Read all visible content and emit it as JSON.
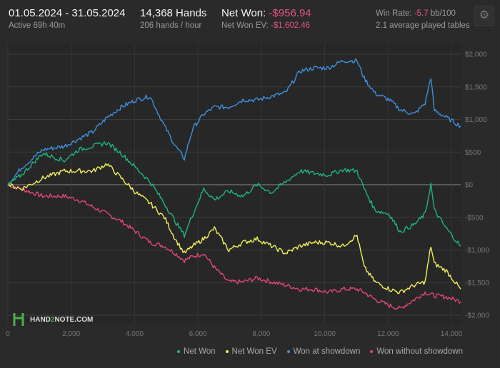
{
  "header": {
    "date_range": "01.05.2024 - 31.05.2024",
    "active": "Active 69h 40m",
    "hands": "14,368 Hands",
    "hands_per_hour": "206 hands / hour",
    "net_won_label": "Net Won:",
    "net_won_value": "-$956.94",
    "net_won_ev_label": "Net Won  EV:",
    "net_won_ev_value": "-$1,602.46",
    "win_rate_label": "Win Rate:",
    "win_rate_value": "-5.7",
    "win_rate_unit": "bb/100",
    "tables": "2.1 average played tables"
  },
  "logo": {
    "text_a": "HAND",
    "text_b": "2",
    "text_c": "NOTE.COM"
  },
  "chart_data": {
    "type": "line",
    "xlim": [
      0,
      14368
    ],
    "ylim": [
      -2000,
      2000
    ],
    "grid": true,
    "legend_placement": "bottom-right",
    "x_ticks": [
      "0",
      "2,000",
      "4,000",
      "6,000",
      "8,000",
      "10,000",
      "12,000",
      "14,000"
    ],
    "x_tick_values": [
      0,
      2000,
      4000,
      6000,
      8000,
      10000,
      12000,
      14000
    ],
    "y_ticks": [
      "$2,000",
      "$1,500",
      "$1,000",
      "$500",
      "$0",
      "-$500",
      "-$1,000",
      "-$1,500",
      "-$2,000"
    ],
    "y_tick_values": [
      2000,
      1500,
      1000,
      500,
      0,
      -500,
      -1000,
      -1500,
      -2000
    ],
    "x": [
      0,
      430,
      1100,
      1780,
      2230,
      2680,
      3130,
      3580,
      4040,
      4490,
      4940,
      5280,
      5570,
      5840,
      6180,
      6520,
      6970,
      7420,
      7870,
      8320,
      8770,
      9220,
      9670,
      10120,
      10570,
      11020,
      11250,
      11590,
      12040,
      12380,
      12830,
      13170,
      13350,
      13460,
      13840,
      14290
    ],
    "series": [
      {
        "name": "Net Won",
        "color": "#1fb57f",
        "values": [
          0,
          150,
          480,
          370,
          535,
          590,
          645,
          480,
          260,
          45,
          -285,
          -560,
          -775,
          -450,
          -65,
          -230,
          -100,
          -175,
          0,
          -120,
          45,
          210,
          175,
          150,
          230,
          210,
          -65,
          -390,
          -450,
          -720,
          -610,
          -450,
          10,
          -390,
          -670,
          -940
        ]
      },
      {
        "name": "Net Won  EV",
        "color": "#f2f05a",
        "values": [
          0,
          -65,
          100,
          210,
          210,
          210,
          320,
          100,
          -120,
          -285,
          -500,
          -830,
          -1050,
          -940,
          -830,
          -670,
          -1000,
          -885,
          -830,
          -940,
          -1050,
          -940,
          -885,
          -885,
          -940,
          -775,
          -1270,
          -1490,
          -1600,
          -1650,
          -1540,
          -1490,
          -940,
          -1210,
          -1320,
          -1600
        ]
      },
      {
        "name": "Won at showdown",
        "color": "#3f8fdc",
        "values": [
          0,
          260,
          535,
          590,
          700,
          810,
          1030,
          1190,
          1300,
          1355,
          900,
          600,
          400,
          865,
          1080,
          1190,
          1190,
          1300,
          1300,
          1355,
          1410,
          1740,
          1790,
          1790,
          1900,
          1900,
          1630,
          1400,
          1300,
          1150,
          1080,
          1250,
          1650,
          1140,
          1030,
          900
        ]
      },
      {
        "name": "Won without showdown",
        "color": "#e0457a",
        "values": [
          0,
          -65,
          -175,
          -175,
          -230,
          -340,
          -450,
          -560,
          -720,
          -885,
          -940,
          -1050,
          -1160,
          -1100,
          -1050,
          -1270,
          -1490,
          -1490,
          -1430,
          -1490,
          -1540,
          -1600,
          -1600,
          -1650,
          -1600,
          -1600,
          -1650,
          -1760,
          -1850,
          -1900,
          -1760,
          -1650,
          -1680,
          -1700,
          -1720,
          -1790
        ]
      }
    ]
  }
}
